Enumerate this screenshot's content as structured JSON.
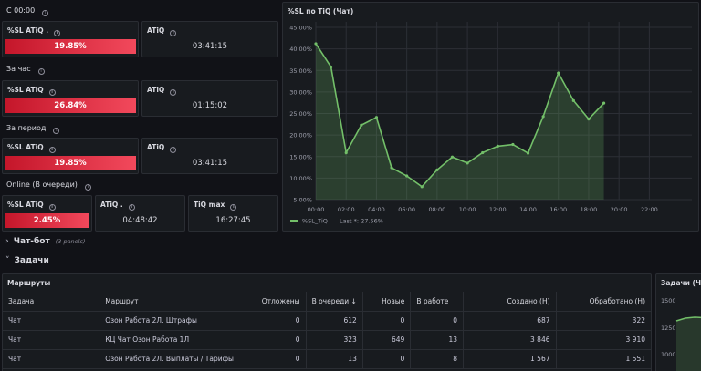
{
  "sections": {
    "since_midnight": "С 00:00",
    "per_hour": "За час",
    "per_period": "За период",
    "online": "Online (В очереди)"
  },
  "stats": {
    "s1_sl_title": "%SL ATiQ .",
    "s1_sl_value": "19.85%",
    "s1_atiq_title": "ATiQ",
    "s1_atiq_value": "03:41:15",
    "s2_sl_title": "%SL ATiQ",
    "s2_sl_value": "26.84%",
    "s2_atiq_title": "ATiQ",
    "s2_atiq_value": "01:15:02",
    "s3_sl_title": "%SL ATiQ",
    "s3_sl_value": "19.85%",
    "s3_atiq_title": "ATiQ",
    "s3_atiq_value": "03:41:15",
    "s4_sl_title": "%SL ATiQ",
    "s4_sl_value": "2.45%",
    "s4_atiq_title": "ATiQ .",
    "s4_atiq_value": "04:48:42",
    "s4_max_title": "TiQ max",
    "s4_max_value": "16:27:45"
  },
  "rows": {
    "chatbot": "Чат-бот",
    "chatbot_sub": "(3 panels)",
    "tasks": "Задачи"
  },
  "colors": {
    "accent_red": "#e02f44",
    "series_green": "#73bf69"
  },
  "chart_data": {
    "type": "area",
    "title": "%SL по TiQ (Чат)",
    "x": [
      "00:00",
      "01:00",
      "02:00",
      "03:00",
      "04:00",
      "05:00",
      "06:00",
      "07:00",
      "08:00",
      "09:00",
      "10:00",
      "11:00",
      "12:00",
      "13:00",
      "14:00",
      "15:00",
      "16:00",
      "17:00",
      "18:00",
      "19:00"
    ],
    "x_ticks": [
      "00:00",
      "02:00",
      "04:00",
      "06:00",
      "08:00",
      "10:00",
      "12:00",
      "14:00",
      "16:00",
      "18:00",
      "20:00",
      "22:00"
    ],
    "y_ticks": [
      "5.00%",
      "10.00%",
      "15.00%",
      "20.00%",
      "25.00%",
      "30.00%",
      "35.00%",
      "40.00%",
      "45.00%"
    ],
    "ylim": [
      5,
      45
    ],
    "xlim_hours": [
      0,
      23
    ],
    "series": [
      {
        "name": "%SL_TiQ",
        "values": [
          41.2,
          35.8,
          15.9,
          22.3,
          24.1,
          12.4,
          10.5,
          8.0,
          11.9,
          14.9,
          13.5,
          15.9,
          17.4,
          17.8,
          15.8,
          24.3,
          34.4,
          28.0,
          23.7,
          27.4
        ]
      }
    ],
    "legend": {
      "label": "%SL_TiQ",
      "last_label": "Last *: 27.56%",
      "placement": "bottom-left"
    }
  },
  "routes_table": {
    "title": "Маршруты",
    "headers": [
      "Задача",
      "Маршрут",
      "Отложены",
      "В очереди ↓",
      "Новые",
      "В работе",
      "Создано (Н)",
      "Обработано (Н)"
    ],
    "rows": [
      [
        "Чат",
        "Озон Работа 2Л. Штрафы",
        "0",
        "612",
        "0",
        "0",
        "687",
        "322"
      ],
      [
        "Чат",
        "КЦ Чат Озон Работа 1Л",
        "0",
        "323",
        "649",
        "13",
        "3 846",
        "3 910"
      ],
      [
        "Чат",
        "Озон Работа 2Л. Выплаты / Тарифы",
        "0",
        "13",
        "0",
        "8",
        "1 567",
        "1 551"
      ]
    ]
  },
  "tasks_panel": {
    "title": "Задачи (Ча",
    "y_ticks": [
      "1500",
      "1250",
      "1000"
    ]
  }
}
